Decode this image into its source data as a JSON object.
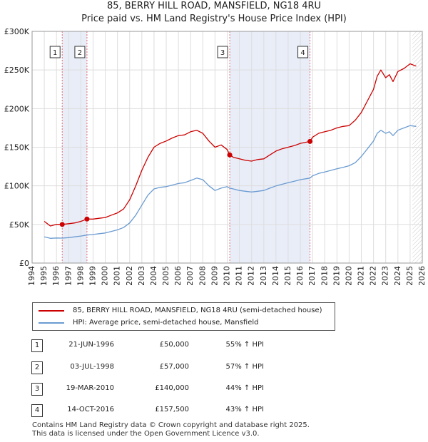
{
  "title_line1": "85, BERRY HILL ROAD, MANSFIELD, NG18 4RU",
  "title_line2": "Price paid vs. HM Land Registry's House Price Index (HPI)",
  "colors": {
    "property": "#cc0000",
    "hpi": "#6a9bd1",
    "shade": "#e8edf8",
    "marker_line": "#e07070"
  },
  "legend": {
    "property_label": "85, BERRY HILL ROAD, MANSFIELD, NG18 4RU (semi-detached house)",
    "hpi_label": "HPI: Average price, semi-detached house, Mansfield"
  },
  "transactions": [
    {
      "num": "1",
      "date": "21-JUN-1996",
      "price": "£50,000",
      "hpi": "55% ↑ HPI"
    },
    {
      "num": "2",
      "date": "03-JUL-1998",
      "price": "£57,000",
      "hpi": "57% ↑ HPI"
    },
    {
      "num": "3",
      "date": "19-MAR-2010",
      "price": "£140,000",
      "hpi": "44% ↑ HPI"
    },
    {
      "num": "4",
      "date": "14-OCT-2016",
      "price": "£157,500",
      "hpi": "43% ↑ HPI"
    }
  ],
  "footer": {
    "line1": "Contains HM Land Registry data © Crown copyright and database right 2025.",
    "line2": "This data is licensed under the Open Government Licence v3.0."
  },
  "chart_data": {
    "type": "line",
    "title": "85, BERRY HILL ROAD, MANSFIELD, NG18 4RU",
    "subtitle": "Price paid vs. HM Land Registry's House Price Index (HPI)",
    "xlabel": "",
    "ylabel": "",
    "xlim": [
      1994,
      2026
    ],
    "ylim": [
      0,
      300000
    ],
    "y_ticks": [
      0,
      50000,
      100000,
      150000,
      200000,
      250000,
      300000
    ],
    "y_tick_labels": [
      "£0",
      "£50K",
      "£100K",
      "£150K",
      "£200K",
      "£250K",
      "£300K"
    ],
    "x_ticks": [
      1994,
      1995,
      1996,
      1997,
      1998,
      1999,
      2000,
      2001,
      2002,
      2003,
      2004,
      2005,
      2006,
      2007,
      2008,
      2009,
      2010,
      2011,
      2012,
      2013,
      2014,
      2015,
      2016,
      2017,
      2018,
      2019,
      2020,
      2021,
      2022,
      2023,
      2024,
      2025,
      2026
    ],
    "x_tick_labels": [
      "1994",
      "1995",
      "1996",
      "1997",
      "1998",
      "1999",
      "2000",
      "2001",
      "2002",
      "2003",
      "2004",
      "2005",
      "2006",
      "2007",
      "2008",
      "2009",
      "2010",
      "2011",
      "2012",
      "2013",
      "2014",
      "2015",
      "2016",
      "2017",
      "2018",
      "2019",
      "2020",
      "2021",
      "2022",
      "2023",
      "2024",
      "2025",
      "2026"
    ],
    "grid": true,
    "shaded_ranges": [
      [
        1996.47,
        1998.5
      ],
      [
        2010.21,
        2016.79
      ]
    ],
    "forecast_start": 2025.2,
    "markers": [
      {
        "label": "1",
        "x": 1996.47,
        "y": 50000
      },
      {
        "label": "2",
        "x": 1998.5,
        "y": 57000
      },
      {
        "label": "3",
        "x": 2010.21,
        "y": 140000
      },
      {
        "label": "4",
        "x": 2016.79,
        "y": 157500
      }
    ],
    "series": [
      {
        "name": "85, BERRY HILL ROAD, MANSFIELD, NG18 4RU (semi-detached house)",
        "x": [
          1995.0,
          1995.5,
          1996.0,
          1996.47,
          1997.0,
          1997.5,
          1998.0,
          1998.5,
          1999.0,
          1999.5,
          2000.0,
          2000.5,
          2001.0,
          2001.5,
          2002.0,
          2002.5,
          2003.0,
          2003.5,
          2004.0,
          2004.5,
          2005.0,
          2005.5,
          2006.0,
          2006.5,
          2007.0,
          2007.5,
          2008.0,
          2008.5,
          2009.0,
          2009.5,
          2010.0,
          2010.21,
          2010.5,
          2011.0,
          2011.5,
          2012.0,
          2012.5,
          2013.0,
          2013.5,
          2014.0,
          2014.5,
          2015.0,
          2015.5,
          2016.0,
          2016.79,
          2017.0,
          2017.5,
          2018.0,
          2018.5,
          2019.0,
          2019.5,
          2020.0,
          2020.5,
          2021.0,
          2021.5,
          2022.0,
          2022.3,
          2022.6,
          2023.0,
          2023.3,
          2023.6,
          2024.0,
          2024.5,
          2025.0,
          2025.5
        ],
        "values": [
          54000,
          48000,
          50000,
          50000,
          51000,
          52000,
          54000,
          57000,
          57000,
          58000,
          59000,
          62000,
          65000,
          70000,
          82000,
          100000,
          120000,
          137000,
          150000,
          155000,
          158000,
          162000,
          165000,
          166000,
          170000,
          172000,
          168000,
          158000,
          150000,
          153000,
          147000,
          140000,
          137000,
          135000,
          133000,
          132000,
          134000,
          135000,
          140000,
          145000,
          148000,
          150000,
          152000,
          155000,
          157500,
          163000,
          168000,
          170000,
          172000,
          175000,
          177000,
          178000,
          185000,
          195000,
          210000,
          225000,
          242000,
          250000,
          240000,
          244000,
          235000,
          248000,
          252000,
          258000,
          255000
        ]
      },
      {
        "name": "HPI: Average price, semi-detached house, Mansfield",
        "x": [
          1995.0,
          1995.5,
          1996.0,
          1996.47,
          1997.0,
          1997.5,
          1998.0,
          1998.5,
          1999.0,
          1999.5,
          2000.0,
          2000.5,
          2001.0,
          2001.5,
          2002.0,
          2002.5,
          2003.0,
          2003.5,
          2004.0,
          2004.5,
          2005.0,
          2005.5,
          2006.0,
          2006.5,
          2007.0,
          2007.5,
          2008.0,
          2008.5,
          2009.0,
          2009.5,
          2010.0,
          2010.21,
          2010.5,
          2011.0,
          2011.5,
          2012.0,
          2012.5,
          2013.0,
          2013.5,
          2014.0,
          2014.5,
          2015.0,
          2015.5,
          2016.0,
          2016.79,
          2017.0,
          2017.5,
          2018.0,
          2018.5,
          2019.0,
          2019.5,
          2020.0,
          2020.5,
          2021.0,
          2021.5,
          2022.0,
          2022.3,
          2022.6,
          2023.0,
          2023.3,
          2023.6,
          2024.0,
          2024.5,
          2025.0,
          2025.5
        ],
        "values": [
          34000,
          32000,
          32500,
          32300,
          33000,
          34000,
          35000,
          36300,
          37000,
          38000,
          39000,
          41000,
          43000,
          46000,
          52000,
          62000,
          75000,
          88000,
          96000,
          98000,
          99000,
          101000,
          103000,
          104000,
          107000,
          110000,
          108000,
          100000,
          94000,
          97000,
          99000,
          97000,
          96000,
          94000,
          93000,
          92000,
          93000,
          94000,
          97000,
          100000,
          102000,
          104000,
          106000,
          108000,
          110000,
          113000,
          116000,
          118000,
          120000,
          122000,
          124000,
          126000,
          130000,
          138000,
          148000,
          158000,
          168000,
          172000,
          168000,
          170000,
          165000,
          172000,
          175000,
          178000,
          177000
        ]
      }
    ]
  }
}
